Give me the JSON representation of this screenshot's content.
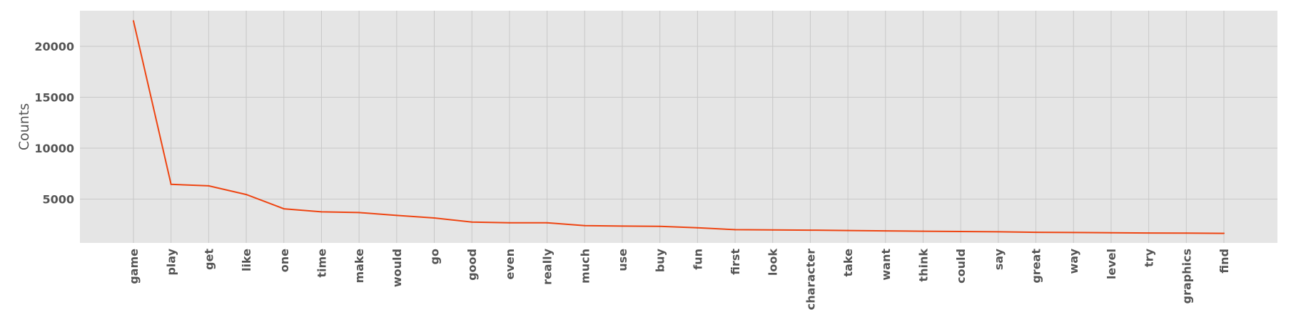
{
  "chart_data": {
    "type": "line",
    "title": "",
    "xlabel": "",
    "ylabel": "Counts",
    "ylim": [
      700,
      23500
    ],
    "yticks": [
      5000,
      10000,
      15000,
      20000
    ],
    "grid": true,
    "legend": "none",
    "colors": {
      "plot_bg": "#e5e5e5",
      "grid": "#c8c8c8",
      "line": "#ee4411",
      "text": "#555555"
    },
    "categories": [
      "game",
      "play",
      "get",
      "like",
      "one",
      "time",
      "make",
      "would",
      "go",
      "good",
      "even",
      "really",
      "much",
      "use",
      "buy",
      "fun",
      "first",
      "look",
      "character",
      "take",
      "want",
      "think",
      "could",
      "say",
      "great",
      "way",
      "level",
      "try",
      "graphics",
      "find"
    ],
    "series": [
      {
        "values": [
          22500,
          6450,
          6300,
          5450,
          4050,
          3750,
          3680,
          3400,
          3150,
          2750,
          2680,
          2670,
          2400,
          2350,
          2320,
          2180,
          2000,
          1970,
          1950,
          1920,
          1880,
          1850,
          1820,
          1790,
          1740,
          1720,
          1690,
          1670,
          1660,
          1640
        ]
      }
    ]
  }
}
